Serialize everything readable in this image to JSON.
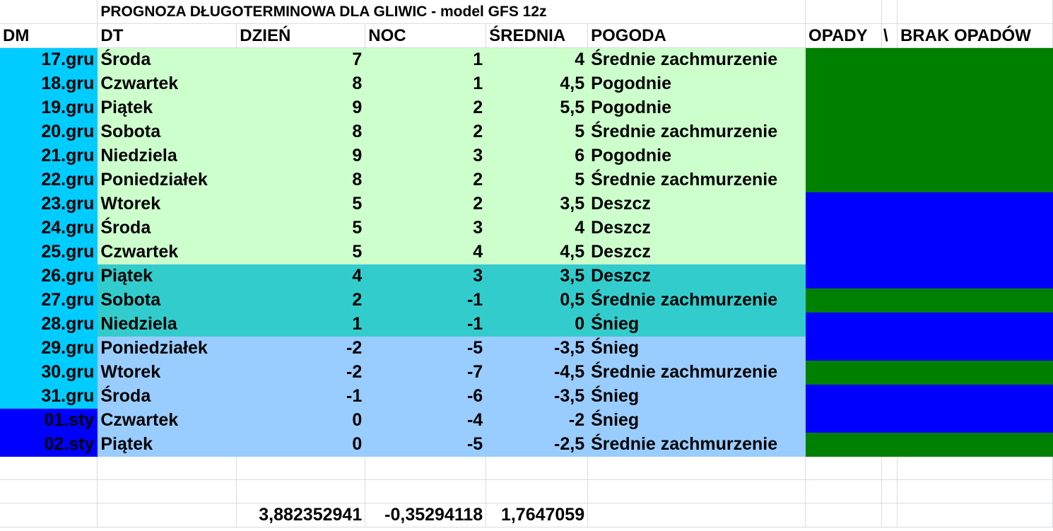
{
  "title": "PROGNOZA DŁUGOTERMINOWA DLA GLIWIC - model GFS 12z",
  "headers": [
    "DM",
    "DT",
    "DZIEŃ",
    "NOC",
    "ŚREDNIA",
    "POGODA",
    "OPADY",
    "\\",
    "BRAK OPADÓW"
  ],
  "colors": {
    "dm_dec": "#00ccff",
    "dm_jan": "#0000ff",
    "warm": "#ccffcc",
    "mild": "#33cccc",
    "cold": "#99ccff",
    "no_precip": "#008000",
    "precip": "#0000ff"
  },
  "rows": [
    {
      "dm": "17.gru",
      "dt": "Środa",
      "dzien": "7",
      "noc": "1",
      "srednia": "4",
      "pogoda": "Średnie zachmurzenie",
      "band": "warm",
      "opady": "no_precip"
    },
    {
      "dm": "18.gru",
      "dt": "Czwartek",
      "dzien": "8",
      "noc": "1",
      "srednia": "4,5",
      "pogoda": "Pogodnie",
      "band": "warm",
      "opady": "no_precip"
    },
    {
      "dm": "19.gru",
      "dt": "Piątek",
      "dzien": "9",
      "noc": "2",
      "srednia": "5,5",
      "pogoda": "Pogodnie",
      "band": "warm",
      "opady": "no_precip"
    },
    {
      "dm": "20.gru",
      "dt": "Sobota",
      "dzien": "8",
      "noc": "2",
      "srednia": "5",
      "pogoda": "Średnie zachmurzenie",
      "band": "warm",
      "opady": "no_precip"
    },
    {
      "dm": "21.gru",
      "dt": "Niedziela",
      "dzien": "9",
      "noc": "3",
      "srednia": "6",
      "pogoda": "Pogodnie",
      "band": "warm",
      "opady": "no_precip"
    },
    {
      "dm": "22.gru",
      "dt": "Poniedziałek",
      "dzien": "8",
      "noc": "2",
      "srednia": "5",
      "pogoda": "Średnie zachmurzenie",
      "band": "warm",
      "opady": "no_precip"
    },
    {
      "dm": "23.gru",
      "dt": "Wtorek",
      "dzien": "5",
      "noc": "2",
      "srednia": "3,5",
      "pogoda": "Deszcz",
      "band": "warm",
      "opady": "precip"
    },
    {
      "dm": "24.gru",
      "dt": "Środa",
      "dzien": "5",
      "noc": "3",
      "srednia": "4",
      "pogoda": "Deszcz",
      "band": "warm",
      "opady": "precip"
    },
    {
      "dm": "25.gru",
      "dt": "Czwartek",
      "dzien": "5",
      "noc": "4",
      "srednia": "4,5",
      "pogoda": "Deszcz",
      "band": "warm",
      "opady": "precip"
    },
    {
      "dm": "26.gru",
      "dt": "Piątek",
      "dzien": "4",
      "noc": "3",
      "srednia": "3,5",
      "pogoda": "Deszcz",
      "band": "mild",
      "opady": "precip"
    },
    {
      "dm": "27.gru",
      "dt": "Sobota",
      "dzien": "2",
      "noc": "-1",
      "srednia": "0,5",
      "pogoda": "Średnie zachmurzenie",
      "band": "mild",
      "opady": "no_precip"
    },
    {
      "dm": "28.gru",
      "dt": "Niedziela",
      "dzien": "1",
      "noc": "-1",
      "srednia": "0",
      "pogoda": "Śnieg",
      "band": "mild",
      "opady": "precip"
    },
    {
      "dm": "29.gru",
      "dt": "Poniedziałek",
      "dzien": "-2",
      "noc": "-5",
      "srednia": "-3,5",
      "pogoda": "Śnieg",
      "band": "cold",
      "opady": "precip"
    },
    {
      "dm": "30.gru",
      "dt": "Wtorek",
      "dzien": "-2",
      "noc": "-7",
      "srednia": "-4,5",
      "pogoda": "Średnie zachmurzenie",
      "band": "cold",
      "opady": "no_precip"
    },
    {
      "dm": "31.gru",
      "dt": "Środa",
      "dzien": "-1",
      "noc": "-6",
      "srednia": "-3,5",
      "pogoda": "Śnieg",
      "band": "cold",
      "opady": "precip"
    },
    {
      "dm": "01.sty",
      "dt": "Czwartek",
      "dzien": "0",
      "noc": "-4",
      "srednia": "-2",
      "pogoda": "Śnieg",
      "band": "cold",
      "opady": "precip"
    },
    {
      "dm": "02.sty",
      "dt": "Piątek",
      "dzien": "0",
      "noc": "-5",
      "srednia": "-2,5",
      "pogoda": "Średnie zachmurzenie",
      "band": "cold",
      "opady": "no_precip"
    }
  ],
  "averages": {
    "dzien": "3,882352941",
    "noc": "-0,35294118",
    "srednia": "1,7647059"
  }
}
